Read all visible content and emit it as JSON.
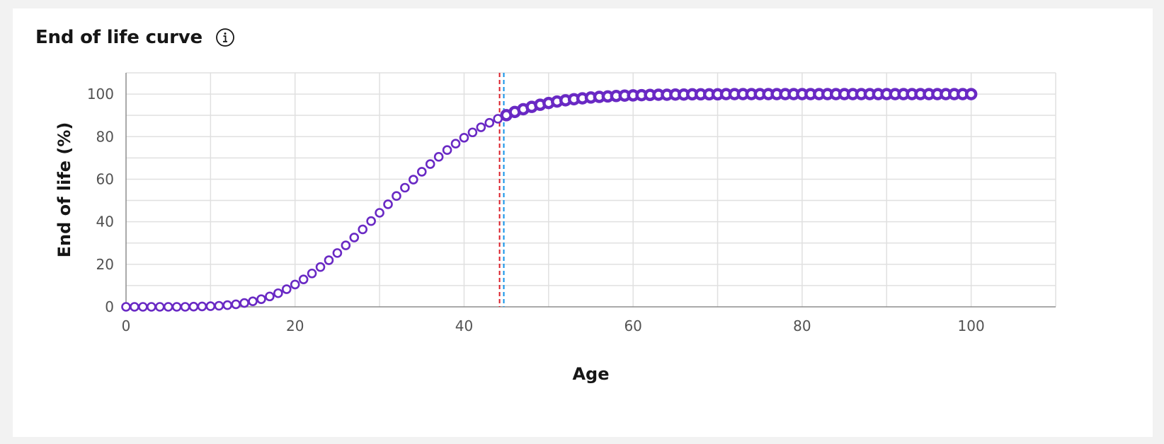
{
  "header": {
    "title": "End of life curve",
    "info_icon": "info-icon"
  },
  "colors": {
    "series": "#6929c4",
    "marker_line_red": "#da1e28",
    "marker_line_blue": "#1192e8",
    "grid": "#e0e0e0",
    "axis": "#8d8d8d"
  },
  "chart_data": {
    "type": "scatter",
    "title": "End of life curve",
    "xlabel": "Age",
    "ylabel": "End of life (%)",
    "xlim": [
      0,
      110
    ],
    "ylim": [
      0,
      110
    ],
    "xticks": [
      0,
      20,
      40,
      60,
      80,
      100
    ],
    "yticks": [
      0,
      20,
      40,
      60,
      80,
      100
    ],
    "grid": true,
    "series": [
      {
        "x": [
          0,
          1,
          2,
          3,
          4,
          5,
          6,
          7,
          8,
          9,
          10,
          11,
          12,
          13,
          14,
          15,
          16,
          17,
          18,
          19,
          20,
          21,
          22,
          23,
          24,
          25,
          26,
          27,
          28,
          29,
          30,
          31,
          32,
          33,
          34,
          35,
          36,
          37,
          38,
          39,
          40,
          41,
          42,
          43,
          44,
          45,
          46,
          47,
          48,
          49,
          50,
          51,
          52,
          53,
          54,
          55,
          56,
          57,
          58,
          59,
          60,
          61,
          62,
          63,
          64,
          65,
          66,
          67,
          68,
          69,
          70,
          71,
          72,
          73,
          74,
          75,
          76,
          77,
          78,
          79,
          80,
          81,
          82,
          83,
          84,
          85,
          86,
          87,
          88,
          89,
          90,
          91,
          92,
          93,
          94,
          95,
          96,
          97,
          98,
          99,
          100
        ],
        "y": [
          0,
          0,
          0,
          0,
          0,
          0,
          0,
          0,
          0.1,
          0.2,
          0.3,
          0.5,
          0.8,
          1.2,
          1.8,
          2.6,
          3.6,
          4.9,
          6.4,
          8.3,
          10.5,
          12.9,
          15.7,
          18.7,
          21.9,
          25.3,
          28.9,
          32.6,
          36.4,
          40.3,
          44.2,
          48.2,
          52.1,
          56,
          59.8,
          63.5,
          67.1,
          70.5,
          73.7,
          76.7,
          79.5,
          82,
          84.4,
          86.5,
          88.4,
          90.1,
          91.6,
          92.9,
          94,
          95,
          95.8,
          96.5,
          97.1,
          97.6,
          98,
          98.4,
          98.7,
          98.9,
          99.1,
          99.3,
          99.4,
          99.5,
          99.6,
          99.7,
          99.7,
          99.8,
          99.8,
          99.9,
          99.9,
          99.9,
          99.9,
          100,
          100,
          100,
          100,
          100,
          100,
          100,
          100,
          100,
          100,
          100,
          100,
          100,
          100,
          100,
          100,
          100,
          100,
          100,
          100,
          100,
          100,
          100,
          100,
          100,
          100,
          100,
          100,
          100,
          100
        ],
        "split_at_x": 44.5
      }
    ],
    "reference_lines_x": [
      44.2,
      44.7
    ]
  }
}
